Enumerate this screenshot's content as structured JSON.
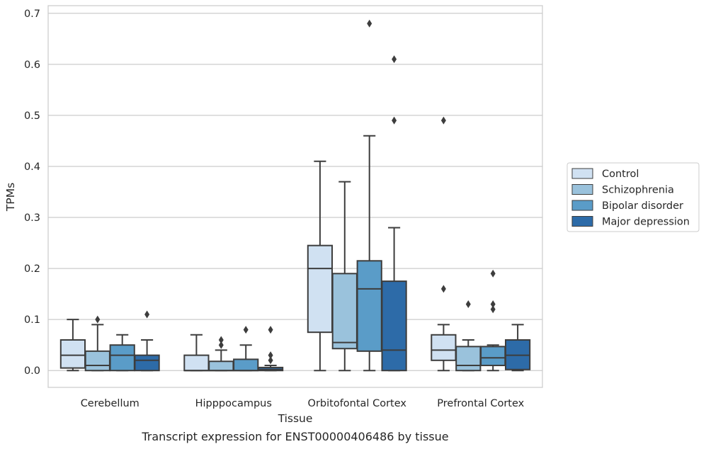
{
  "chart_data": {
    "type": "box",
    "caption": "Transcript expression for ENST00000406486 by tissue",
    "xlabel": "Tissue",
    "ylabel": "TPMs",
    "ylim": [
      -0.033,
      0.715
    ],
    "yticks": [
      "0.0",
      "0.1",
      "0.2",
      "0.3",
      "0.4",
      "0.5",
      "0.6",
      "0.7"
    ],
    "grid": "horizontal",
    "legend_position": "right",
    "categories": [
      "Cerebellum",
      "Hipppocampus",
      "Orbitofontal Cortex",
      "Prefrontal Cortex"
    ],
    "series": [
      {
        "name": "Control",
        "color": "#d0e1f2",
        "boxes": [
          {
            "whislo": 0.0,
            "q1": 0.005,
            "med": 0.03,
            "q3": 0.06,
            "whishi": 0.1,
            "fliers": []
          },
          {
            "whislo": 0.0,
            "q1": 0.0,
            "med": 0.0,
            "q3": 0.03,
            "whishi": 0.07,
            "fliers": []
          },
          {
            "whislo": 0.0,
            "q1": 0.075,
            "med": 0.2,
            "q3": 0.245,
            "whishi": 0.41,
            "fliers": []
          },
          {
            "whislo": 0.0,
            "q1": 0.02,
            "med": 0.04,
            "q3": 0.07,
            "whishi": 0.09,
            "fliers": [
              0.16,
              0.49
            ]
          }
        ]
      },
      {
        "name": "Schizophrenia",
        "color": "#9ac2dc",
        "boxes": [
          {
            "whislo": 0.0,
            "q1": 0.0,
            "med": 0.01,
            "q3": 0.038,
            "whishi": 0.09,
            "fliers": [
              0.1
            ]
          },
          {
            "whislo": 0.0,
            "q1": 0.0,
            "med": 0.0,
            "q3": 0.018,
            "whishi": 0.04,
            "fliers": [
              0.05,
              0.06
            ]
          },
          {
            "whislo": 0.0,
            "q1": 0.043,
            "med": 0.055,
            "q3": 0.19,
            "whishi": 0.37,
            "fliers": []
          },
          {
            "whislo": 0.0,
            "q1": 0.0,
            "med": 0.01,
            "q3": 0.047,
            "whishi": 0.06,
            "fliers": [
              0.13
            ]
          }
        ]
      },
      {
        "name": "Bipolar disorder",
        "color": "#5a9cc8",
        "boxes": [
          {
            "whislo": 0.0,
            "q1": 0.0,
            "med": 0.03,
            "q3": 0.05,
            "whishi": 0.07,
            "fliers": []
          },
          {
            "whislo": 0.0,
            "q1": 0.0,
            "med": 0.0,
            "q3": 0.022,
            "whishi": 0.05,
            "fliers": [
              0.08
            ]
          },
          {
            "whislo": 0.0,
            "q1": 0.038,
            "med": 0.16,
            "q3": 0.215,
            "whishi": 0.46,
            "fliers": [
              0.68
            ]
          },
          {
            "whislo": 0.0,
            "q1": 0.01,
            "med": 0.025,
            "q3": 0.047,
            "whishi": 0.05,
            "fliers": [
              0.12,
              0.13,
              0.19
            ]
          }
        ]
      },
      {
        "name": "Major depression",
        "color": "#2d6ba8",
        "boxes": [
          {
            "whislo": 0.0,
            "q1": 0.0,
            "med": 0.02,
            "q3": 0.03,
            "whishi": 0.06,
            "fliers": [
              0.11
            ]
          },
          {
            "whislo": 0.0,
            "q1": 0.0,
            "med": 0.002,
            "q3": 0.006,
            "whishi": 0.01,
            "fliers": [
              0.02,
              0.03,
              0.08
            ]
          },
          {
            "whislo": 0.0,
            "q1": 0.0,
            "med": 0.04,
            "q3": 0.175,
            "whishi": 0.28,
            "fliers": [
              0.49,
              0.61
            ]
          },
          {
            "whislo": 0.0,
            "q1": 0.002,
            "med": 0.03,
            "q3": 0.06,
            "whishi": 0.09,
            "fliers": []
          }
        ]
      }
    ]
  }
}
